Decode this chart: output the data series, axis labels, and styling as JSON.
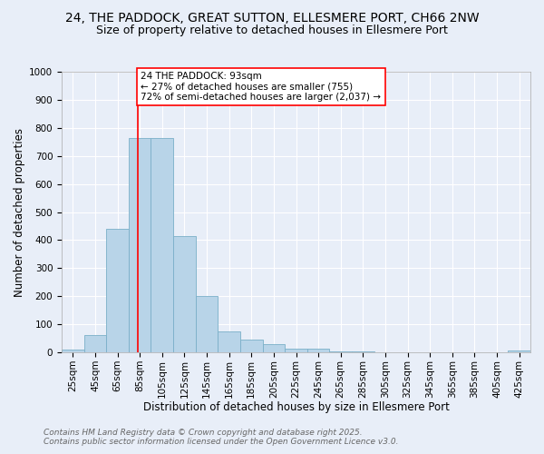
{
  "title": "24, THE PADDOCK, GREAT SUTTON, ELLESMERE PORT, CH66 2NW",
  "subtitle": "Size of property relative to detached houses in Ellesmere Port",
  "xlabel": "Distribution of detached houses by size in Ellesmere Port",
  "ylabel": "Number of detached properties",
  "footnote1": "Contains HM Land Registry data © Crown copyright and database right 2025.",
  "footnote2": "Contains public sector information licensed under the Open Government Licence v3.0.",
  "bin_labels": [
    "25sqm",
    "45sqm",
    "65sqm",
    "85sqm",
    "105sqm",
    "125sqm",
    "145sqm",
    "165sqm",
    "185sqm",
    "205sqm",
    "225sqm",
    "245sqm",
    "265sqm",
    "285sqm",
    "305sqm",
    "325sqm",
    "345sqm",
    "365sqm",
    "385sqm",
    "405sqm",
    "425sqm"
  ],
  "bin_edges": [
    25,
    45,
    65,
    85,
    105,
    125,
    145,
    165,
    185,
    205,
    225,
    245,
    265,
    285,
    305,
    325,
    345,
    365,
    385,
    405,
    425,
    445
  ],
  "bar_values": [
    10,
    62,
    440,
    765,
    765,
    413,
    202,
    75,
    46,
    28,
    12,
    12,
    5,
    5,
    0,
    0,
    0,
    0,
    0,
    0,
    8
  ],
  "bar_color": "#b8d4e8",
  "bar_edge_color": "#7aafc8",
  "property_size": 93,
  "property_line_color": "red",
  "annotation_text": "24 THE PADDOCK: 93sqm\n← 27% of detached houses are smaller (755)\n72% of semi-detached houses are larger (2,037) →",
  "annotation_box_color": "white",
  "annotation_box_edge": "red",
  "ylim": [
    0,
    1000
  ],
  "yticks": [
    0,
    100,
    200,
    300,
    400,
    500,
    600,
    700,
    800,
    900,
    1000
  ],
  "bg_color": "#e8eef8",
  "grid_color": "white",
  "title_fontsize": 10,
  "subtitle_fontsize": 9,
  "axis_label_fontsize": 8.5,
  "tick_fontsize": 7.5,
  "annotation_fontsize": 7.5,
  "footnote_fontsize": 6.5
}
